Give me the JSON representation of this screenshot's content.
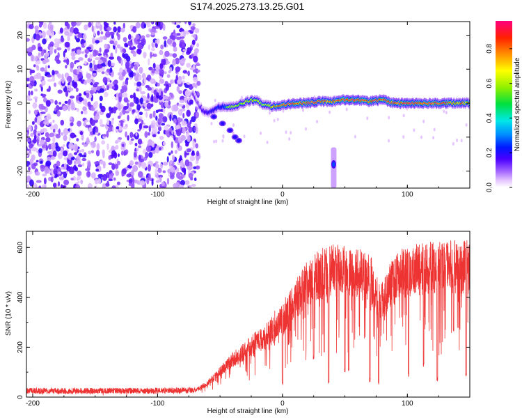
{
  "title": "S174.2025.273.13.25.G01",
  "chart_data": [
    {
      "type": "heatmap",
      "name": "spectrogram",
      "xlabel": "Height of straight line (km)",
      "ylabel": "Frequency (Hz)",
      "xlim": [
        -205,
        150
      ],
      "ylim": [
        -25,
        24
      ],
      "xticks": [
        -200,
        -100,
        0,
        100
      ],
      "yticks": [
        -20,
        -10,
        0,
        10,
        20
      ],
      "noise_region_x": [
        -205,
        -67
      ],
      "ridge": [
        {
          "x": -72,
          "f": 3,
          "amp": 0.3
        },
        {
          "x": -68,
          "f": 0,
          "amp": 0.25
        },
        {
          "x": -64,
          "f": -2,
          "amp": 0.35
        },
        {
          "x": -60,
          "f": -3,
          "amp": 0.4
        },
        {
          "x": -55,
          "f": -2,
          "amp": 0.45
        },
        {
          "x": -50,
          "f": -1,
          "amp": 0.5
        },
        {
          "x": -45,
          "f": -1,
          "amp": 0.55
        },
        {
          "x": -40,
          "f": -1,
          "amp": 0.6
        },
        {
          "x": -35,
          "f": -0.5,
          "amp": 0.6
        },
        {
          "x": -28,
          "f": 0.5,
          "amp": 0.65
        },
        {
          "x": -22,
          "f": 1,
          "amp": 0.65
        },
        {
          "x": -15,
          "f": -0.5,
          "amp": 0.6
        },
        {
          "x": -8,
          "f": -1,
          "amp": 0.7
        },
        {
          "x": 0,
          "f": -0.5,
          "amp": 0.85
        },
        {
          "x": 10,
          "f": 0,
          "amp": 0.9
        },
        {
          "x": 20,
          "f": 0,
          "amp": 0.9
        },
        {
          "x": 30,
          "f": 0.5,
          "amp": 0.85
        },
        {
          "x": 40,
          "f": 0.5,
          "amp": 0.8
        },
        {
          "x": 50,
          "f": 1,
          "amp": 0.95
        },
        {
          "x": 60,
          "f": 1,
          "amp": 0.95
        },
        {
          "x": 70,
          "f": 0.5,
          "amp": 0.85
        },
        {
          "x": 80,
          "f": 1,
          "amp": 0.9
        },
        {
          "x": 90,
          "f": 0,
          "amp": 0.9
        },
        {
          "x": 100,
          "f": 0,
          "amp": 0.95
        },
        {
          "x": 110,
          "f": 0,
          "amp": 0.9
        },
        {
          "x": 120,
          "f": 0,
          "amp": 0.9
        },
        {
          "x": 130,
          "f": 0,
          "amp": 0.85
        },
        {
          "x": 140,
          "f": 0,
          "amp": 0.8
        },
        {
          "x": 150,
          "f": 0,
          "amp": 0.75
        }
      ],
      "tail": [
        {
          "x": -55,
          "f": -4
        },
        {
          "x": -48,
          "f": -6
        },
        {
          "x": -42,
          "f": -8
        },
        {
          "x": -38,
          "f": -10
        },
        {
          "x": -35,
          "f": -11
        }
      ],
      "blob": {
        "x": 41,
        "f_range": [
          -25,
          -13
        ],
        "f_peak": -18
      },
      "colorbar": {
        "label": "Normalized spectral amplitude",
        "ticks": [
          0.0,
          0.2,
          0.4,
          0.6,
          0.8
        ],
        "tick_labels": [
          "0.0",
          "0.2",
          "0.4",
          "0.6",
          "0.8"
        ],
        "range": [
          0,
          0.96
        ]
      }
    },
    {
      "type": "line",
      "name": "snr",
      "xlabel": "Height of straight line (km)",
      "ylabel": "SNR (10 * v/v)",
      "xlim": [
        -205,
        150
      ],
      "ylim": [
        0,
        665
      ],
      "xticks": [
        -200,
        -100,
        0,
        100
      ],
      "yticks": [
        0,
        200,
        400,
        600
      ],
      "color": "#ee3333",
      "envelope": [
        {
          "x": -205,
          "y": 25
        },
        {
          "x": -150,
          "y": 25
        },
        {
          "x": -100,
          "y": 25
        },
        {
          "x": -70,
          "y": 28
        },
        {
          "x": -60,
          "y": 60
        },
        {
          "x": -50,
          "y": 110
        },
        {
          "x": -40,
          "y": 160
        },
        {
          "x": -30,
          "y": 200
        },
        {
          "x": -20,
          "y": 240
        },
        {
          "x": -10,
          "y": 280
        },
        {
          "x": 0,
          "y": 330
        },
        {
          "x": 10,
          "y": 420
        },
        {
          "x": 20,
          "y": 490
        },
        {
          "x": 30,
          "y": 530
        },
        {
          "x": 40,
          "y": 545
        },
        {
          "x": 50,
          "y": 545
        },
        {
          "x": 60,
          "y": 540
        },
        {
          "x": 70,
          "y": 520
        },
        {
          "x": 75,
          "y": 440
        },
        {
          "x": 80,
          "y": 410
        },
        {
          "x": 85,
          "y": 470
        },
        {
          "x": 95,
          "y": 530
        },
        {
          "x": 110,
          "y": 555
        },
        {
          "x": 130,
          "y": 560
        },
        {
          "x": 150,
          "y": 565
        }
      ],
      "dips": [
        {
          "x": 0,
          "y": 40
        },
        {
          "x": 25,
          "y": 150
        },
        {
          "x": 37,
          "y": 50
        },
        {
          "x": 50,
          "y": 100
        },
        {
          "x": 53,
          "y": 100
        },
        {
          "x": 70,
          "y": 60
        },
        {
          "x": 77,
          "y": 50
        },
        {
          "x": 101,
          "y": 80
        },
        {
          "x": 113,
          "y": 120
        },
        {
          "x": 124,
          "y": 60
        },
        {
          "x": 137,
          "y": 260
        },
        {
          "x": 147,
          "y": 80
        }
      ]
    }
  ]
}
